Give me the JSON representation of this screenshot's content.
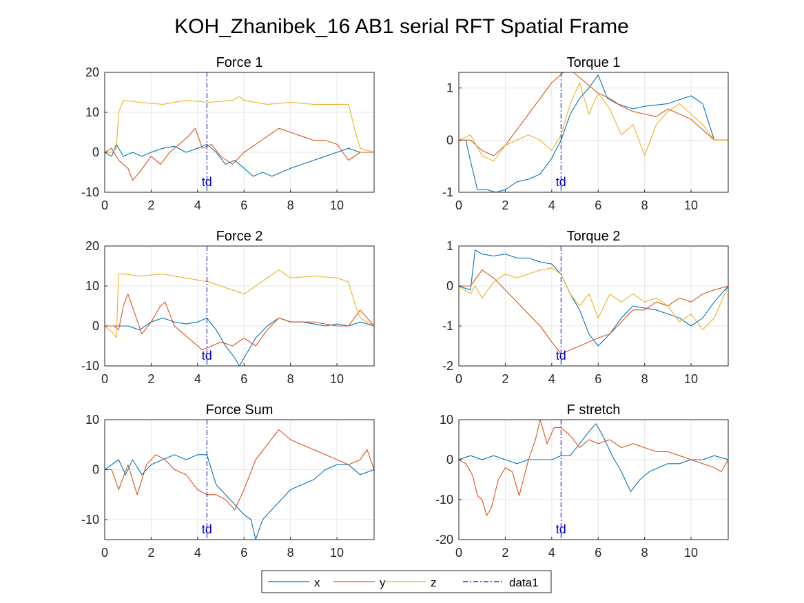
{
  "figure_title": "KOH_Zhanibek_16 AB1 serial RFT Spatial Frame",
  "colors": {
    "x": "#0072BD",
    "y": "#D95319",
    "z": "#EDB120",
    "data1": "#0000CC",
    "grid": "#E6E6E6",
    "axes": "#262626"
  },
  "legend": {
    "placement": "bottom-center",
    "entries": [
      "x",
      "y",
      "z",
      "data1"
    ]
  },
  "chart_data": [
    {
      "type": "line",
      "title": "Force 1",
      "xlabel": "",
      "ylabel": "",
      "xlim": [
        0,
        11.6
      ],
      "ylim": [
        -10,
        20
      ],
      "xticks": [
        0,
        2,
        4,
        6,
        8,
        10
      ],
      "yticks": [
        -10,
        0,
        10,
        20
      ],
      "grid": true,
      "vline": {
        "x": 4.4,
        "label": "td"
      },
      "series": [
        {
          "name": "x",
          "x": [
            0,
            0.3,
            0.5,
            0.8,
            1.2,
            1.6,
            2,
            2.5,
            3,
            3.5,
            4,
            4.4,
            4.8,
            5.2,
            5.6,
            6,
            6.4,
            6.8,
            7.2,
            7.6,
            8,
            8.5,
            9,
            9.5,
            10,
            10.5,
            11,
            11.6
          ],
          "y": [
            0,
            -1,
            2,
            -1,
            0,
            -1,
            0,
            1,
            1.5,
            0,
            1,
            2,
            0,
            -3,
            -2,
            -4,
            -6,
            -5,
            -6,
            -5,
            -4,
            -3,
            -2,
            -1,
            0,
            1,
            0,
            0
          ]
        },
        {
          "name": "y",
          "x": [
            0,
            0.3,
            0.6,
            1,
            1.2,
            1.5,
            2,
            2.4,
            2.8,
            3.2,
            3.6,
            3.9,
            4.2,
            4.6,
            5,
            5.5,
            6,
            6.5,
            7,
            7.5,
            8,
            8.5,
            9,
            9.5,
            10,
            10.5,
            11,
            11.6
          ],
          "y": [
            0,
            1,
            -2,
            -4,
            -7,
            -5,
            -1,
            -3,
            0,
            2,
            4,
            6,
            1,
            2,
            -1,
            -3,
            0,
            2,
            4,
            6,
            5,
            4,
            3,
            3,
            2,
            -2,
            0,
            0
          ]
        },
        {
          "name": "z",
          "x": [
            0,
            0.3,
            0.5,
            0.6,
            0.8,
            1.5,
            2.5,
            3.5,
            4.5,
            5.5,
            5.8,
            6,
            7,
            8,
            9,
            10,
            10.5,
            10.8,
            11,
            11.6
          ],
          "y": [
            0,
            0,
            1,
            10,
            13,
            12.5,
            12,
            13,
            12.5,
            13,
            14,
            13,
            12,
            12.5,
            12,
            12,
            12,
            5,
            1,
            0
          ]
        }
      ]
    },
    {
      "type": "line",
      "title": "Torque 1",
      "xlabel": "",
      "ylabel": "",
      "xlim": [
        0,
        11.6
      ],
      "ylim": [
        -1,
        1.3
      ],
      "xticks": [
        0,
        2,
        4,
        6,
        8,
        10
      ],
      "yticks": [
        -1,
        0,
        1
      ],
      "grid": true,
      "vline": {
        "x": 4.4,
        "label": "td"
      },
      "series": [
        {
          "name": "x",
          "x": [
            0,
            0.3,
            0.5,
            0.8,
            1.2,
            1.6,
            2,
            2.5,
            3,
            3.5,
            4,
            4.4,
            4.8,
            5.2,
            5.6,
            6,
            6.4,
            6.8,
            7.5,
            8,
            9,
            10,
            10.5,
            11,
            11.6
          ],
          "y": [
            0,
            0,
            -0.4,
            -0.95,
            -0.95,
            -1,
            -0.95,
            -0.8,
            -0.75,
            -0.65,
            -0.35,
            0,
            0.5,
            0.8,
            1.0,
            1.25,
            0.8,
            0.7,
            0.6,
            0.65,
            0.7,
            0.85,
            0.7,
            0,
            0
          ]
        },
        {
          "name": "y",
          "x": [
            0,
            0.5,
            1,
            1.5,
            2,
            2.5,
            3,
            3.5,
            4,
            4.5,
            4.8,
            5.2,
            5.6,
            6,
            6.5,
            7,
            7.5,
            8,
            8.5,
            9,
            9.5,
            10,
            10.5,
            11,
            11.6
          ],
          "y": [
            0,
            0,
            -0.2,
            -0.3,
            -0.1,
            0.2,
            0.5,
            0.8,
            1.1,
            1.3,
            1.35,
            1.2,
            1.05,
            0.9,
            0.8,
            0.65,
            0.55,
            0.5,
            0.45,
            0.6,
            0.5,
            0.4,
            0.2,
            0,
            0
          ]
        },
        {
          "name": "z",
          "x": [
            0,
            0.5,
            1,
            1.5,
            2,
            2.5,
            3,
            3.5,
            4,
            4.4,
            4.8,
            5.2,
            5.6,
            6,
            6.5,
            7,
            7.5,
            8,
            8.5,
            9,
            9.5,
            10,
            10.5,
            11,
            11.6
          ],
          "y": [
            0,
            0.1,
            -0.3,
            -0.4,
            -0.1,
            0,
            0.1,
            0,
            -0.2,
            0.1,
            0.7,
            1.1,
            0.5,
            0.9,
            0.6,
            0.1,
            0.3,
            -0.3,
            0.3,
            0.55,
            0.7,
            0.5,
            0.3,
            0,
            0
          ]
        }
      ]
    },
    {
      "type": "line",
      "title": "Force 2",
      "xlabel": "",
      "ylabel": "",
      "xlim": [
        0,
        11.6
      ],
      "ylim": [
        -10,
        20
      ],
      "xticks": [
        0,
        2,
        4,
        6,
        8,
        10
      ],
      "yticks": [
        -10,
        0,
        10,
        20
      ],
      "grid": true,
      "vline": {
        "x": 4.4,
        "label": "td"
      },
      "series": [
        {
          "name": "x",
          "x": [
            0,
            0.5,
            1,
            1.5,
            2,
            2.5,
            3,
            3.5,
            4,
            4.4,
            4.8,
            5.2,
            5.6,
            5.8,
            6,
            6.5,
            7,
            7.5,
            8,
            8.5,
            9,
            9.5,
            10,
            10.5,
            11,
            11.6
          ],
          "y": [
            0,
            0,
            0,
            -1,
            1,
            2,
            1,
            0.5,
            1,
            2,
            -1,
            -5,
            -8,
            -10,
            -8,
            -3,
            0,
            2,
            1,
            1,
            0.5,
            0,
            0.5,
            0,
            1,
            0
          ]
        },
        {
          "name": "y",
          "x": [
            0,
            0.4,
            0.6,
            0.8,
            1,
            1.3,
            1.6,
            2,
            2.4,
            2.6,
            3,
            3.4,
            3.8,
            4.2,
            4.6,
            5,
            5.5,
            6,
            6.5,
            7,
            7.5,
            8,
            9,
            10,
            10.5,
            11,
            11.6
          ],
          "y": [
            0,
            0,
            -1,
            5,
            8,
            3,
            -2,
            1,
            5,
            6,
            0,
            -2,
            -4,
            -6,
            -5,
            -4,
            -5,
            -3,
            -5,
            -1,
            2,
            1,
            1,
            0,
            0,
            4,
            0
          ]
        },
        {
          "name": "z",
          "x": [
            0,
            0.4,
            0.5,
            0.6,
            0.8,
            1.5,
            2.5,
            3.5,
            4.5,
            5,
            5.5,
            6,
            6.5,
            7,
            7.5,
            8,
            9,
            10,
            10.5,
            10.8,
            11,
            11.6
          ],
          "y": [
            0,
            -2,
            -3,
            13,
            13,
            12.5,
            13,
            12,
            11,
            10,
            9,
            8,
            10,
            12,
            14,
            12,
            12.5,
            12,
            11,
            5,
            2,
            0
          ]
        }
      ]
    },
    {
      "type": "line",
      "title": "Torque 2",
      "xlabel": "",
      "ylabel": "",
      "xlim": [
        0,
        11.6
      ],
      "ylim": [
        -2,
        1
      ],
      "xticks": [
        0,
        2,
        4,
        6,
        8,
        10
      ],
      "yticks": [
        -2,
        -1,
        0,
        1
      ],
      "grid": true,
      "vline": {
        "x": 4.4,
        "label": "td"
      },
      "series": [
        {
          "name": "x",
          "x": [
            0,
            0.5,
            0.7,
            1,
            1.5,
            2,
            2.5,
            3,
            3.5,
            4,
            4.4,
            4.8,
            5.2,
            5.6,
            6,
            6.5,
            7,
            7.5,
            8,
            8.5,
            9,
            9.5,
            10,
            10.5,
            11,
            11.6
          ],
          "y": [
            0,
            -0.1,
            0.9,
            0.8,
            0.75,
            0.8,
            0.7,
            0.7,
            0.6,
            0.55,
            0.3,
            -0.2,
            -0.6,
            -1.2,
            -1.5,
            -1.2,
            -0.8,
            -0.5,
            -0.55,
            -0.6,
            -0.7,
            -0.8,
            -1.0,
            -0.8,
            -0.4,
            0
          ]
        },
        {
          "name": "y",
          "x": [
            0,
            0.5,
            1,
            1.5,
            2,
            2.5,
            3,
            3.5,
            4,
            4.4,
            4.8,
            5.2,
            5.6,
            6,
            6.5,
            7,
            7.5,
            8,
            8.5,
            9,
            9.5,
            10,
            10.5,
            11,
            11.6
          ],
          "y": [
            0,
            0,
            0.4,
            0.2,
            -0.1,
            -0.4,
            -0.7,
            -1.0,
            -1.4,
            -1.7,
            -1.6,
            -1.5,
            -1.4,
            -1.3,
            -1.2,
            -0.9,
            -0.6,
            -0.6,
            -0.4,
            -0.5,
            -0.3,
            -0.4,
            -0.2,
            -0.1,
            0
          ]
        },
        {
          "name": "z",
          "x": [
            0,
            0.5,
            0.7,
            1,
            1.5,
            2,
            2.5,
            3,
            3.5,
            4,
            4.4,
            4.8,
            5.2,
            5.6,
            6,
            6.5,
            7,
            7.5,
            8,
            8.5,
            9,
            9.5,
            10,
            10.5,
            11,
            11.6
          ],
          "y": [
            0,
            -0.2,
            0,
            -0.3,
            0.1,
            0.3,
            0.2,
            0.3,
            0.4,
            0.45,
            0.3,
            -0.2,
            -0.5,
            -0.2,
            -0.8,
            -0.2,
            -0.4,
            -0.2,
            -0.4,
            -0.3,
            -0.5,
            -0.9,
            -0.7,
            -1.1,
            -0.8,
            0
          ]
        }
      ]
    },
    {
      "type": "line",
      "title": "Force Sum",
      "xlabel": "",
      "ylabel": "",
      "xlim": [
        0,
        11.6
      ],
      "ylim": [
        -14,
        10
      ],
      "xticks": [
        0,
        2,
        4,
        6,
        8,
        10
      ],
      "yticks": [
        -10,
        0,
        10
      ],
      "grid": true,
      "vline": {
        "x": 4.4,
        "label": "td"
      },
      "series": [
        {
          "name": "x",
          "x": [
            0,
            0.3,
            0.6,
            0.9,
            1.2,
            1.6,
            2,
            2.5,
            3,
            3.5,
            4,
            4.4,
            4.8,
            5.2,
            5.6,
            6,
            6.3,
            6.5,
            6.8,
            7.2,
            7.6,
            8,
            8.5,
            9,
            9.5,
            10,
            10.5,
            11,
            11.6
          ],
          "y": [
            0,
            1,
            2,
            -1,
            2,
            -1,
            1,
            2,
            3,
            2,
            3,
            3,
            -3,
            -5,
            -7,
            -9,
            -10,
            -14,
            -10,
            -8,
            -6,
            -4,
            -3,
            -2,
            0,
            1,
            1,
            -1,
            0
          ]
        },
        {
          "name": "y",
          "x": [
            0,
            0.3,
            0.6,
            1,
            1.4,
            1.8,
            2.2,
            2.6,
            3,
            3.5,
            4,
            4.4,
            4.8,
            5.2,
            5.6,
            6,
            6.5,
            7,
            7.5,
            8,
            8.5,
            9,
            9.5,
            10,
            10.5,
            11,
            11.3,
            11.6
          ],
          "y": [
            0,
            0,
            -4,
            1,
            -5,
            1,
            3,
            2,
            0,
            -1,
            -4,
            -5,
            -5,
            -6,
            -8,
            -4,
            2,
            5,
            8,
            6,
            5,
            4,
            3,
            2,
            1,
            2,
            4,
            0
          ]
        }
      ]
    },
    {
      "type": "line",
      "title": "F stretch",
      "xlabel": "",
      "ylabel": "",
      "xlim": [
        0,
        11.6
      ],
      "ylim": [
        -20,
        10
      ],
      "xticks": [
        0,
        2,
        4,
        6,
        8,
        10
      ],
      "yticks": [
        -20,
        -10,
        0,
        10
      ],
      "grid": true,
      "vline": {
        "x": 4.4,
        "label": "td"
      },
      "series": [
        {
          "name": "x",
          "x": [
            0,
            0.5,
            1,
            1.5,
            2,
            2.5,
            3,
            3.5,
            4,
            4.4,
            4.8,
            5.2,
            5.6,
            5.9,
            6.2,
            6.6,
            7,
            7.4,
            7.8,
            8.2,
            8.6,
            9,
            9.5,
            10,
            10.5,
            11,
            11.6
          ],
          "y": [
            0,
            1,
            0,
            1,
            0,
            -1,
            0,
            0,
            0,
            1,
            1,
            4,
            7,
            9,
            6,
            1,
            -3,
            -8,
            -5,
            -3,
            -2,
            -1,
            -1,
            0,
            0,
            1,
            0
          ]
        },
        {
          "name": "y",
          "x": [
            0,
            0.3,
            0.6,
            0.8,
            1,
            1.2,
            1.4,
            1.7,
            2,
            2.3,
            2.6,
            3,
            3.3,
            3.5,
            3.8,
            4.1,
            4.4,
            4.8,
            5.2,
            5.6,
            6,
            6.5,
            7,
            7.5,
            8,
            8.5,
            9,
            9.5,
            10,
            10.5,
            11,
            11.3,
            11.6
          ],
          "y": [
            0,
            -1,
            -4,
            -9,
            -10,
            -14,
            -12,
            -5,
            -2,
            -3,
            -9,
            0,
            5,
            10,
            4,
            8,
            8,
            6,
            3,
            5,
            4,
            5,
            3,
            4,
            3,
            2,
            2,
            1,
            0,
            -1,
            -2,
            -3,
            0
          ]
        }
      ]
    }
  ]
}
